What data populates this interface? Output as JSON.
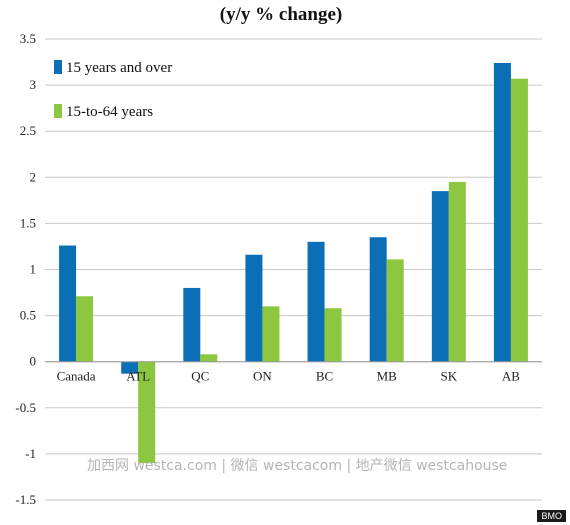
{
  "chart_data": {
    "type": "bar",
    "title": "(y/y % change)",
    "categories": [
      "Canada",
      "ATL",
      "QC",
      "ON",
      "BC",
      "MB",
      "SK",
      "AB"
    ],
    "series": [
      {
        "name": "15 years and over",
        "color": "#0b6fb5",
        "values": [
          1.26,
          -0.13,
          0.8,
          1.16,
          1.3,
          1.35,
          1.85,
          3.24
        ]
      },
      {
        "name": "15-to-64 years",
        "color": "#8dc63f",
        "values": [
          0.71,
          -1.1,
          0.08,
          0.6,
          0.58,
          1.11,
          1.95,
          3.07
        ]
      }
    ],
    "ylim": [
      -1.5,
      3.5
    ],
    "yticks": [
      "3.5",
      "3",
      "2.5",
      "2",
      "1.5",
      "1",
      "0.5",
      "0",
      "-0.5",
      "-1",
      "-1.5"
    ],
    "grid": true,
    "legend_position": "top-left"
  },
  "watermark": "加西网 westca.com | 微信 westcacom | 地产微信 westcahouse",
  "source": "BMO"
}
